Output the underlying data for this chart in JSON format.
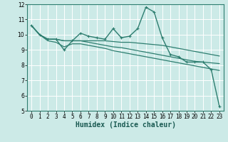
{
  "title": "",
  "xlabel": "Humidex (Indice chaleur)",
  "ylabel": "",
  "background_color": "#cceae7",
  "grid_color": "#ffffff",
  "line_color": "#2d7d6f",
  "xlim": [
    -0.5,
    23.5
  ],
  "ylim": [
    5,
    12
  ],
  "xticks": [
    0,
    1,
    2,
    3,
    4,
    5,
    6,
    7,
    8,
    9,
    10,
    11,
    12,
    13,
    14,
    15,
    16,
    17,
    18,
    19,
    20,
    21,
    22,
    23
  ],
  "yticks": [
    5,
    6,
    7,
    8,
    9,
    10,
    11,
    12
  ],
  "series": [
    [
      10.6,
      10.0,
      9.7,
      9.7,
      9.0,
      9.6,
      10.1,
      9.9,
      9.8,
      9.7,
      10.4,
      9.8,
      9.9,
      10.4,
      11.8,
      11.5,
      9.8,
      8.7,
      8.55,
      8.2,
      8.2,
      8.2,
      7.7,
      5.3
    ],
    [
      10.6,
      10.0,
      9.7,
      9.7,
      9.6,
      9.6,
      9.6,
      9.6,
      9.6,
      9.6,
      9.55,
      9.5,
      9.5,
      9.45,
      9.4,
      9.35,
      9.3,
      9.2,
      9.1,
      9.0,
      8.9,
      8.8,
      8.7,
      8.6
    ],
    [
      10.6,
      10.0,
      9.7,
      9.7,
      9.6,
      9.6,
      9.6,
      9.5,
      9.4,
      9.3,
      9.2,
      9.15,
      9.05,
      8.95,
      8.85,
      8.75,
      8.65,
      8.55,
      8.45,
      8.35,
      8.25,
      8.2,
      8.15,
      8.1
    ],
    [
      10.6,
      10.0,
      9.6,
      9.5,
      9.2,
      9.4,
      9.4,
      9.3,
      9.2,
      9.1,
      8.95,
      8.85,
      8.75,
      8.65,
      8.55,
      8.45,
      8.35,
      8.25,
      8.15,
      8.05,
      7.95,
      7.85,
      7.75,
      7.65
    ]
  ],
  "markers": [
    true,
    false,
    false,
    false
  ],
  "linewidths": [
    1.0,
    0.9,
    0.9,
    0.9
  ],
  "xlabel_fontsize": 7,
  "tick_fontsize": 5.5
}
